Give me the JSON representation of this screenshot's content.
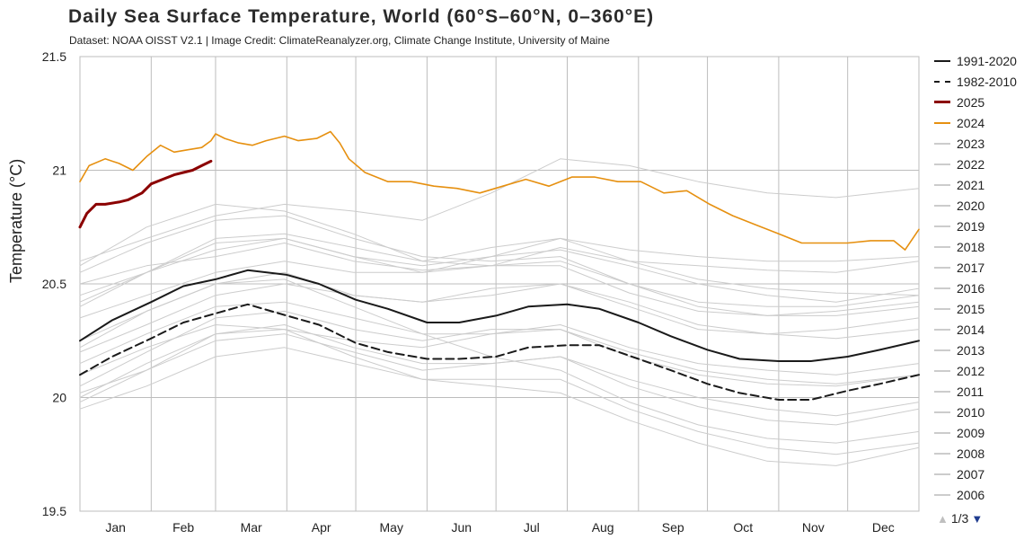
{
  "title": "Daily Sea Surface Temperature, World (60°S–60°N, 0–360°E)",
  "subtitle": "Dataset: NOAA OISST V2.1 | Image Credit: ClimateReanalyzer.org, Climate Change Institute, University of Maine",
  "pager": {
    "up_icon": "triangle-up",
    "text": "1/3",
    "down_icon": "triangle-down"
  },
  "legend": [
    {
      "label": "1991-2020",
      "color": "#1a1a1a",
      "style": "solid"
    },
    {
      "label": "1982-2010",
      "color": "#1a1a1a",
      "style": "dashed"
    },
    {
      "label": "2025",
      "color": "#8b0000",
      "style": "solid"
    },
    {
      "label": "2024",
      "color": "#e69010",
      "style": "solid"
    },
    {
      "label": "2023",
      "color": "#cccccc",
      "style": "solid"
    },
    {
      "label": "2022",
      "color": "#cccccc",
      "style": "solid"
    },
    {
      "label": "2021",
      "color": "#cccccc",
      "style": "solid"
    },
    {
      "label": "2020",
      "color": "#cccccc",
      "style": "solid"
    },
    {
      "label": "2019",
      "color": "#cccccc",
      "style": "solid"
    },
    {
      "label": "2018",
      "color": "#cccccc",
      "style": "solid"
    },
    {
      "label": "2017",
      "color": "#cccccc",
      "style": "solid"
    },
    {
      "label": "2016",
      "color": "#cccccc",
      "style": "solid"
    },
    {
      "label": "2015",
      "color": "#cccccc",
      "style": "solid"
    },
    {
      "label": "2014",
      "color": "#cccccc",
      "style": "solid"
    },
    {
      "label": "2013",
      "color": "#cccccc",
      "style": "solid"
    },
    {
      "label": "2012",
      "color": "#cccccc",
      "style": "solid"
    },
    {
      "label": "2011",
      "color": "#cccccc",
      "style": "solid"
    },
    {
      "label": "2010",
      "color": "#cccccc",
      "style": "solid"
    },
    {
      "label": "2009",
      "color": "#cccccc",
      "style": "solid"
    },
    {
      "label": "2008",
      "color": "#cccccc",
      "style": "solid"
    },
    {
      "label": "2007",
      "color": "#cccccc",
      "style": "solid"
    },
    {
      "label": "2006",
      "color": "#cccccc",
      "style": "solid"
    }
  ],
  "chart_data": {
    "type": "line",
    "title": "Daily Sea Surface Temperature, World (60°S–60°N, 0–360°E)",
    "ylabel": "Temperature (°C)",
    "xlabel": "",
    "ylim": [
      19.5,
      21.5
    ],
    "xlim": [
      1,
      366
    ],
    "yticks": [
      19.5,
      20,
      20.5,
      21,
      21.5
    ],
    "ytick_labels": [
      "19.5",
      "20",
      "20.5",
      "21",
      "21.5"
    ],
    "months": [
      "Jan",
      "Feb",
      "Mar",
      "Apr",
      "May",
      "Jun",
      "Jul",
      "Aug",
      "Sep",
      "Oct",
      "Nov",
      "Dec"
    ],
    "grid": true,
    "legend_position": "right",
    "series": [
      {
        "name": "1991-2020",
        "color": "#1a1a1a",
        "style": "solid",
        "x": [
          1,
          15,
          32,
          46,
          60,
          74,
          91,
          105,
          121,
          135,
          152,
          166,
          182,
          196,
          213,
          227,
          244,
          258,
          274,
          288,
          305,
          319,
          335,
          349,
          366
        ],
        "y": [
          20.25,
          20.34,
          20.42,
          20.49,
          20.52,
          20.56,
          20.54,
          20.5,
          20.43,
          20.39,
          20.33,
          20.33,
          20.36,
          20.4,
          20.41,
          20.39,
          20.33,
          20.27,
          20.21,
          20.17,
          20.16,
          20.16,
          20.18,
          20.21,
          20.25
        ]
      },
      {
        "name": "1982-2010",
        "color": "#1a1a1a",
        "style": "dashed",
        "x": [
          1,
          15,
          32,
          46,
          60,
          74,
          91,
          105,
          121,
          135,
          152,
          166,
          182,
          196,
          213,
          227,
          244,
          258,
          274,
          288,
          305,
          319,
          335,
          349,
          366
        ],
        "y": [
          20.1,
          20.18,
          20.26,
          20.33,
          20.37,
          20.41,
          20.36,
          20.32,
          20.24,
          20.2,
          20.17,
          20.17,
          20.18,
          20.22,
          20.23,
          20.23,
          20.17,
          20.12,
          20.06,
          20.02,
          19.99,
          19.99,
          20.03,
          20.06,
          20.1
        ]
      },
      {
        "name": "2025",
        "color": "#8b0000",
        "style": "solid",
        "x": [
          1,
          4,
          8,
          12,
          18,
          22,
          28,
          32,
          37,
          42,
          46,
          50,
          54,
          58
        ],
        "y": [
          20.75,
          20.81,
          20.85,
          20.85,
          20.86,
          20.87,
          20.9,
          20.94,
          20.96,
          20.98,
          20.99,
          21.0,
          21.02,
          21.04
        ]
      },
      {
        "name": "2024",
        "color": "#e69010",
        "style": "solid",
        "x": [
          1,
          5,
          12,
          18,
          24,
          30,
          36,
          42,
          48,
          54,
          58,
          60,
          64,
          70,
          76,
          82,
          90,
          96,
          104,
          110,
          114,
          118,
          125,
          135,
          145,
          155,
          165,
          175,
          185,
          195,
          205,
          215,
          225,
          235,
          245,
          255,
          265,
          275,
          285,
          295,
          305,
          315,
          325,
          335,
          345,
          355,
          360,
          366
        ],
        "y": [
          20.95,
          21.02,
          21.05,
          21.03,
          21.0,
          21.06,
          21.11,
          21.08,
          21.09,
          21.1,
          21.13,
          21.16,
          21.14,
          21.12,
          21.11,
          21.13,
          21.15,
          21.13,
          21.14,
          21.17,
          21.12,
          21.05,
          20.99,
          20.95,
          20.95,
          20.93,
          20.92,
          20.9,
          20.93,
          20.96,
          20.93,
          20.97,
          20.97,
          20.95,
          20.95,
          20.9,
          20.91,
          20.85,
          20.8,
          20.76,
          20.72,
          20.68,
          20.68,
          20.68,
          20.69,
          20.69,
          20.65,
          20.74
        ]
      },
      {
        "name": "2023",
        "color": "#cccccc",
        "style": "solid",
        "x": [
          1,
          30,
          60,
          90,
          120,
          150,
          180,
          210,
          240,
          270,
          300,
          330,
          366
        ],
        "y": [
          20.6,
          20.7,
          20.8,
          20.85,
          20.82,
          20.78,
          20.9,
          21.05,
          21.02,
          20.95,
          20.9,
          20.88,
          20.92
        ]
      },
      {
        "name": "2022",
        "color": "#cccccc",
        "style": "solid",
        "x": [
          1,
          30,
          60,
          90,
          120,
          150,
          180,
          210,
          240,
          270,
          300,
          330,
          366
        ],
        "y": [
          20.45,
          20.55,
          20.65,
          20.7,
          20.62,
          20.58,
          20.62,
          20.65,
          20.58,
          20.5,
          20.45,
          20.42,
          20.48
        ]
      },
      {
        "name": "2021",
        "color": "#cccccc",
        "style": "solid",
        "x": [
          1,
          30,
          60,
          90,
          120,
          150,
          180,
          210,
          240,
          270,
          300,
          330,
          366
        ],
        "y": [
          20.5,
          20.58,
          20.62,
          20.68,
          20.6,
          20.56,
          20.58,
          20.66,
          20.6,
          20.52,
          20.48,
          20.46,
          20.45
        ]
      },
      {
        "name": "2020",
        "color": "#cccccc",
        "style": "solid",
        "x": [
          1,
          30,
          60,
          90,
          120,
          150,
          180,
          210,
          240,
          270,
          300,
          330,
          366
        ],
        "y": [
          20.55,
          20.68,
          20.78,
          20.8,
          20.7,
          20.62,
          20.6,
          20.62,
          20.5,
          20.42,
          20.4,
          20.4,
          20.45
        ]
      },
      {
        "name": "2019",
        "color": "#cccccc",
        "style": "solid",
        "x": [
          1,
          30,
          60,
          90,
          120,
          150,
          180,
          210,
          240,
          270,
          300,
          330,
          366
        ],
        "y": [
          20.4,
          20.55,
          20.7,
          20.72,
          20.66,
          20.6,
          20.66,
          20.7,
          20.6,
          20.58,
          20.56,
          20.55,
          20.6
        ]
      },
      {
        "name": "2018",
        "color": "#cccccc",
        "style": "solid",
        "x": [
          1,
          30,
          60,
          90,
          120,
          150,
          180,
          210,
          240,
          270,
          300,
          330,
          366
        ],
        "y": [
          20.25,
          20.38,
          20.5,
          20.55,
          20.45,
          20.42,
          20.45,
          20.5,
          20.4,
          20.3,
          20.28,
          20.3,
          20.35
        ]
      },
      {
        "name": "2017",
        "color": "#cccccc",
        "style": "solid",
        "x": [
          1,
          30,
          60,
          90,
          120,
          150,
          180,
          210,
          240,
          270,
          300,
          330,
          366
        ],
        "y": [
          20.42,
          20.55,
          20.68,
          20.7,
          20.62,
          20.55,
          20.58,
          20.6,
          20.5,
          20.4,
          20.36,
          20.36,
          20.4
        ]
      },
      {
        "name": "2016",
        "color": "#cccccc",
        "style": "solid",
        "x": [
          1,
          30,
          60,
          90,
          120,
          150,
          180,
          210,
          240,
          270,
          300,
          330,
          366
        ],
        "y": [
          20.58,
          20.75,
          20.85,
          20.82,
          20.72,
          20.6,
          20.58,
          20.58,
          20.46,
          20.38,
          20.36,
          20.38,
          20.42
        ]
      },
      {
        "name": "2015",
        "color": "#cccccc",
        "style": "solid",
        "x": [
          1,
          30,
          60,
          90,
          120,
          150,
          180,
          210,
          240,
          270,
          300,
          330,
          366
        ],
        "y": [
          20.35,
          20.45,
          20.55,
          20.6,
          20.55,
          20.55,
          20.62,
          20.7,
          20.65,
          20.62,
          20.6,
          20.6,
          20.62
        ]
      },
      {
        "name": "2014",
        "color": "#cccccc",
        "style": "solid",
        "x": [
          1,
          30,
          60,
          90,
          120,
          150,
          180,
          210,
          240,
          270,
          300,
          330,
          366
        ],
        "y": [
          20.2,
          20.32,
          20.45,
          20.5,
          20.45,
          20.42,
          20.48,
          20.5,
          20.42,
          20.32,
          20.28,
          20.26,
          20.3
        ]
      },
      {
        "name": "2013",
        "color": "#cccccc",
        "style": "solid",
        "x": [
          1,
          30,
          60,
          90,
          120,
          150,
          180,
          210,
          240,
          270,
          300,
          330,
          366
        ],
        "y": [
          20.15,
          20.28,
          20.4,
          20.42,
          20.35,
          20.28,
          20.28,
          20.3,
          20.18,
          20.1,
          20.06,
          20.05,
          20.1
        ]
      },
      {
        "name": "2012",
        "color": "#cccccc",
        "style": "solid",
        "x": [
          1,
          30,
          60,
          90,
          120,
          150,
          180,
          210,
          240,
          270,
          300,
          330,
          366
        ],
        "y": [
          20.05,
          20.2,
          20.35,
          20.38,
          20.3,
          20.25,
          20.3,
          20.3,
          20.2,
          20.12,
          20.08,
          20.06,
          20.1
        ]
      },
      {
        "name": "2011",
        "color": "#cccccc",
        "style": "solid",
        "x": [
          1,
          30,
          60,
          90,
          120,
          150,
          180,
          210,
          240,
          270,
          300,
          330,
          366
        ],
        "y": [
          19.98,
          20.12,
          20.28,
          20.32,
          20.22,
          20.15,
          20.15,
          20.18,
          20.05,
          19.96,
          19.9,
          19.88,
          19.95
        ]
      },
      {
        "name": "2010",
        "color": "#cccccc",
        "style": "solid",
        "x": [
          1,
          30,
          60,
          90,
          120,
          150,
          180,
          210,
          240,
          270,
          300,
          330,
          366
        ],
        "y": [
          20.22,
          20.38,
          20.5,
          20.52,
          20.4,
          20.28,
          20.18,
          20.12,
          19.98,
          19.88,
          19.82,
          19.8,
          19.85
        ]
      },
      {
        "name": "2009",
        "color": "#cccccc",
        "style": "solid",
        "x": [
          1,
          30,
          60,
          90,
          120,
          150,
          180,
          210,
          240,
          270,
          300,
          330,
          366
        ],
        "y": [
          20.0,
          20.15,
          20.28,
          20.3,
          20.25,
          20.22,
          20.28,
          20.32,
          20.22,
          20.15,
          20.12,
          20.1,
          20.15
        ]
      },
      {
        "name": "2008",
        "color": "#cccccc",
        "style": "solid",
        "x": [
          1,
          30,
          60,
          90,
          120,
          150,
          180,
          210,
          240,
          270,
          300,
          330,
          366
        ],
        "y": [
          19.95,
          20.05,
          20.18,
          20.22,
          20.15,
          20.08,
          20.08,
          20.08,
          19.95,
          19.85,
          19.78,
          19.75,
          19.8
        ]
      },
      {
        "name": "2007",
        "color": "#cccccc",
        "style": "solid",
        "x": [
          1,
          30,
          60,
          90,
          120,
          150,
          180,
          210,
          240,
          270,
          300,
          330,
          366
        ],
        "y": [
          20.1,
          20.22,
          20.32,
          20.3,
          20.18,
          20.08,
          20.05,
          20.02,
          19.9,
          19.8,
          19.72,
          19.7,
          19.78
        ]
      },
      {
        "name": "2006",
        "color": "#cccccc",
        "style": "solid",
        "x": [
          1,
          30,
          60,
          90,
          120,
          150,
          180,
          210,
          240,
          270,
          300,
          330,
          366
        ],
        "y": [
          20.02,
          20.12,
          20.25,
          20.28,
          20.2,
          20.12,
          20.15,
          20.18,
          20.08,
          20.0,
          19.95,
          19.92,
          19.98
        ]
      }
    ]
  }
}
